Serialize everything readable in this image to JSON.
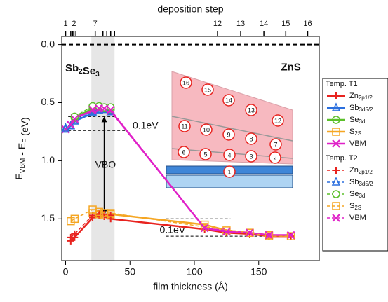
{
  "chart_data": {
    "type": "line",
    "xlabel": "film thickness (Å)",
    "ylabel": [
      {
        "text": "E"
      },
      {
        "text": "VBM",
        "sub": true
      },
      {
        "text": " - E"
      },
      {
        "text": "F",
        "sub": true
      },
      {
        "text": " (eV)"
      }
    ],
    "xlim": [
      -3,
      197
    ],
    "ylim": [
      -0.07,
      1.86
    ],
    "y_inverted": true,
    "xticks": [
      0,
      50,
      100,
      150
    ],
    "yticks": [
      {
        "value": 0,
        "label": "0.0"
      },
      {
        "value": 0.5,
        "label": "0.5"
      },
      {
        "value": 1.0,
        "label": "1.0"
      },
      {
        "value": 1.5,
        "label": "1.5"
      }
    ],
    "top_axis": {
      "label": "deposition step",
      "ticks": [
        {
          "value": 0,
          "label": "1"
        },
        {
          "value": 6.5,
          "label": "2"
        },
        {
          "value": 23,
          "label": "7"
        },
        {
          "value": 118,
          "label": "12"
        },
        {
          "value": 136,
          "label": "13"
        },
        {
          "value": 154,
          "label": "14"
        },
        {
          "value": 171,
          "label": "15"
        },
        {
          "value": 188,
          "label": "16"
        }
      ],
      "minor_ticks": [
        4,
        5.5,
        8,
        29,
        32,
        35,
        38
      ]
    },
    "shaded_x": [
      20,
      38
    ],
    "ref_lines": [
      {
        "y": 0,
        "x": [
          -3,
          197
        ],
        "style": "bold"
      },
      {
        "y": 0.62,
        "x": [
          2,
          38
        ],
        "style": "thin"
      },
      {
        "y": 0.74,
        "x": [
          2,
          48
        ],
        "style": "thin"
      },
      {
        "y": 1.5,
        "x": [
          78,
          128
        ],
        "style": "thin"
      },
      {
        "y": 1.65,
        "x": [
          78,
          175
        ],
        "style": "thin"
      }
    ],
    "annotations": [
      {
        "text": "0.1eV",
        "x": 62,
        "y": 0.7
      },
      {
        "text": "0.1eV",
        "x": 83,
        "y": 1.6
      },
      {
        "text": "VBO",
        "x": 31,
        "y": 1.04
      },
      {
        "text": "ZnS",
        "x": 175,
        "y": 0.2
      }
    ],
    "material_label": [
      {
        "text": "Sb"
      },
      {
        "text": "2",
        "sub": true
      },
      {
        "text": "Se"
      },
      {
        "text": "3",
        "sub": true
      }
    ],
    "arrow": {
      "x": 30,
      "y": [
        0.62,
        1.47
      ]
    },
    "legend_groups": [
      "Temp. T1",
      "Temp. T2"
    ],
    "series": [
      {
        "name": "Zn",
        "name_sub": "2p1/2",
        "group": 0,
        "color": "#e8231f",
        "marker": "plus",
        "dash": false,
        "x": [
          4,
          7,
          21,
          26,
          30,
          35,
          108,
          125,
          143,
          158,
          175
        ],
        "values": [
          1.69,
          1.66,
          1.49,
          1.47,
          1.48,
          1.5,
          1.59,
          1.62,
          1.63,
          1.65,
          1.65
        ]
      },
      {
        "name": "Sb",
        "name_sub": "3d5/2",
        "group": 0,
        "color": "#2b6fde",
        "marker": "triangle",
        "dash": false,
        "x": [
          0,
          4,
          7,
          21,
          26,
          30,
          35
        ],
        "values": [
          0.73,
          0.7,
          0.66,
          0.59,
          0.57,
          0.56,
          0.58
        ]
      },
      {
        "name": "Se",
        "name_sub": "3d",
        "group": 0,
        "color": "#5bbf2a",
        "marker": "circle",
        "dash": false,
        "x": [
          7,
          21,
          26,
          30,
          35
        ],
        "values": [
          0.63,
          0.55,
          0.54,
          0.55,
          0.56
        ]
      },
      {
        "name": "S",
        "name_sub": "2S",
        "group": 0,
        "color": "#f5a623",
        "marker": "square",
        "dash": false,
        "x": [
          21,
          26,
          30,
          35,
          108,
          125,
          143,
          158,
          175
        ],
        "values": [
          1.45,
          1.46,
          1.47,
          1.46,
          1.55,
          1.6,
          1.62,
          1.64,
          1.65
        ]
      },
      {
        "name": "VBM",
        "group": 0,
        "color": "#e020c8",
        "marker": "x",
        "dash": false,
        "x": [
          0,
          4,
          7,
          21,
          26,
          30,
          35,
          108,
          125,
          143,
          158,
          175
        ],
        "values": [
          0.73,
          0.69,
          0.63,
          0.57,
          0.56,
          0.55,
          0.57,
          1.58,
          1.61,
          1.62,
          1.64,
          1.64
        ]
      },
      {
        "name": "Zn",
        "name_sub": "2p1/2",
        "group": 1,
        "color": "#e8231f",
        "marker": "plus",
        "dash": true,
        "x": [
          4,
          7,
          21,
          26,
          30,
          35
        ],
        "values": [
          1.66,
          1.63,
          1.47,
          1.46,
          1.46,
          1.47
        ]
      },
      {
        "name": "Sb",
        "name_sub": "3d5/2",
        "group": 1,
        "color": "#2b6fde",
        "marker": "triangle",
        "dash": true,
        "x": [
          0,
          4,
          7,
          21,
          26,
          30,
          35
        ],
        "values": [
          0.72,
          0.7,
          0.65,
          0.58,
          0.56,
          0.56,
          0.57
        ]
      },
      {
        "name": "Se",
        "name_sub": "3d",
        "group": 1,
        "color": "#5bbf2a",
        "marker": "circle",
        "dash": true,
        "x": [
          7,
          21,
          26,
          30,
          35
        ],
        "values": [
          0.62,
          0.53,
          0.53,
          0.54,
          0.54
        ]
      },
      {
        "name": "S",
        "name_sub": "2S",
        "group": 1,
        "color": "#f5a623",
        "marker": "square",
        "dash": true,
        "x": [
          4,
          7,
          21,
          26,
          30,
          35,
          108,
          143,
          158,
          175
        ],
        "values": [
          1.52,
          1.5,
          1.42,
          1.44,
          1.45,
          1.45,
          1.57,
          1.62,
          1.65,
          1.65
        ]
      },
      {
        "name": "VBM",
        "group": 1,
        "color": "#e020c8",
        "marker": "x",
        "dash": true,
        "x": [
          4,
          7,
          21,
          26,
          30,
          35,
          108,
          143,
          158,
          175
        ],
        "values": [
          0.69,
          0.64,
          0.56,
          0.55,
          0.55,
          0.56,
          1.58,
          1.62,
          1.64,
          1.64
        ]
      }
    ],
    "inset_labels": [
      "1",
      "2",
      "3",
      "4",
      "5",
      "6",
      "7",
      "8",
      "9",
      "10",
      "11",
      "12",
      "13",
      "14",
      "15",
      "16"
    ]
  }
}
